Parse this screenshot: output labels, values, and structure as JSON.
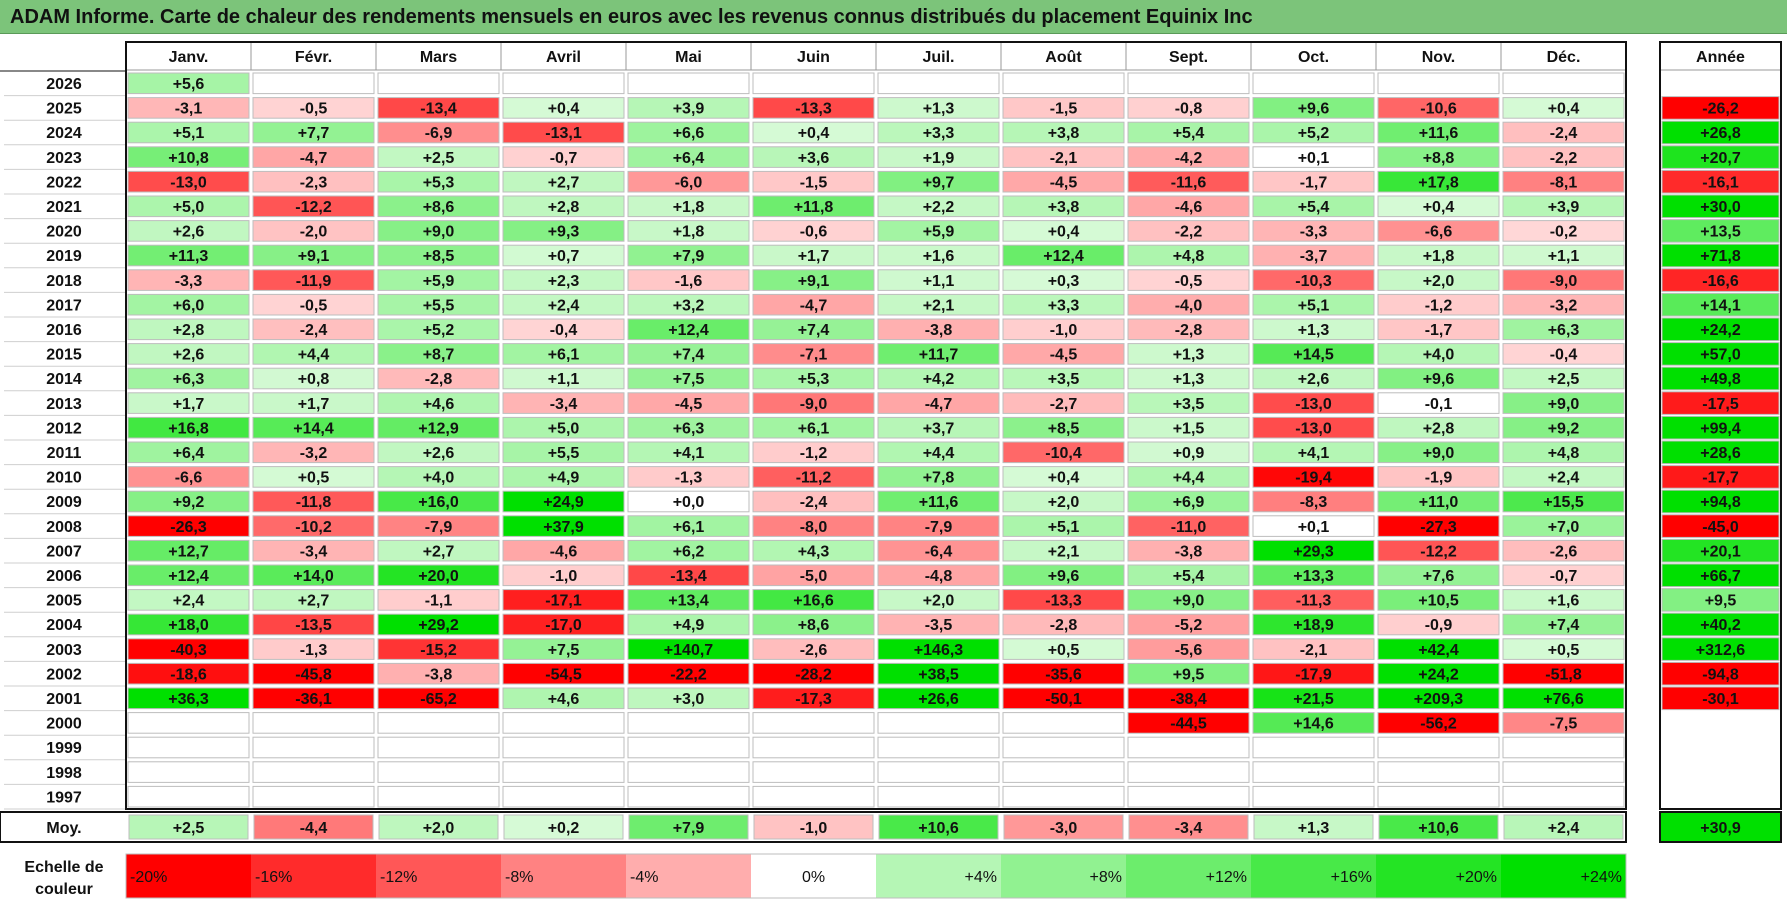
{
  "title": "ADAM Informe. Carte de chaleur des rendements mensuels en euros avec les revenus connus distribués du placement Equinix Inc",
  "chart_data": {
    "type": "heatmap",
    "months": [
      "Janv.",
      "Févr.",
      "Mars",
      "Avril",
      "Mai",
      "Juin",
      "Juil.",
      "Août",
      "Sept.",
      "Oct.",
      "Nov.",
      "Déc."
    ],
    "year_header": "Année",
    "rows": [
      {
        "year": "2026",
        "values": [
          "+5,6",
          "",
          "",
          "",
          "",
          "",
          "",
          "",
          "",
          "",
          "",
          ""
        ],
        "annual": ""
      },
      {
        "year": "2025",
        "values": [
          "-3,1",
          "-0,5",
          "-13,4",
          "+0,4",
          "+3,9",
          "-13,3",
          "+1,3",
          "-1,5",
          "-0,8",
          "+9,6",
          "-10,6",
          "+0,4"
        ],
        "annual": "-26,2"
      },
      {
        "year": "2024",
        "values": [
          "+5,1",
          "+7,7",
          "-6,9",
          "-13,1",
          "+6,6",
          "+0,4",
          "+3,3",
          "+3,8",
          "+5,4",
          "+5,2",
          "+11,6",
          "-2,4"
        ],
        "annual": "+26,8"
      },
      {
        "year": "2023",
        "values": [
          "+10,8",
          "-4,7",
          "+2,5",
          "-0,7",
          "+6,4",
          "+3,6",
          "+1,9",
          "-2,1",
          "-4,2",
          "+0,1",
          "+8,8",
          "-2,2"
        ],
        "annual": "+20,7"
      },
      {
        "year": "2022",
        "values": [
          "-13,0",
          "-2,3",
          "+5,3",
          "+2,7",
          "-6,0",
          "-1,5",
          "+9,7",
          "-4,5",
          "-11,6",
          "-1,7",
          "+17,8",
          "-8,1"
        ],
        "annual": "-16,1"
      },
      {
        "year": "2021",
        "values": [
          "+5,0",
          "-12,2",
          "+8,6",
          "+2,8",
          "+1,8",
          "+11,8",
          "+2,2",
          "+3,8",
          "-4,6",
          "+5,4",
          "+0,4",
          "+3,9"
        ],
        "annual": "+30,0"
      },
      {
        "year": "2020",
        "values": [
          "+2,6",
          "-2,0",
          "+9,0",
          "+9,3",
          "+1,8",
          "-0,6",
          "+5,9",
          "+0,4",
          "-2,2",
          "-3,3",
          "-6,6",
          "-0,2"
        ],
        "annual": "+13,5"
      },
      {
        "year": "2019",
        "values": [
          "+11,3",
          "+9,1",
          "+8,5",
          "+0,7",
          "+7,9",
          "+1,7",
          "+1,6",
          "+12,4",
          "+4,8",
          "-3,7",
          "+1,8",
          "+1,1"
        ],
        "annual": "+71,8"
      },
      {
        "year": "2018",
        "values": [
          "-3,3",
          "-11,9",
          "+5,9",
          "+2,3",
          "-1,6",
          "+9,1",
          "+1,1",
          "+0,3",
          "-0,5",
          "-10,3",
          "+2,0",
          "-9,0"
        ],
        "annual": "-16,6"
      },
      {
        "year": "2017",
        "values": [
          "+6,0",
          "-0,5",
          "+5,5",
          "+2,4",
          "+3,2",
          "-4,7",
          "+2,1",
          "+3,3",
          "-4,0",
          "+5,1",
          "-1,2",
          "-3,2"
        ],
        "annual": "+14,1"
      },
      {
        "year": "2016",
        "values": [
          "+2,8",
          "-2,4",
          "+5,2",
          "-0,4",
          "+12,4",
          "+7,4",
          "-3,8",
          "-1,0",
          "-2,8",
          "+1,3",
          "-1,7",
          "+6,3"
        ],
        "annual": "+24,2"
      },
      {
        "year": "2015",
        "values": [
          "+2,6",
          "+4,4",
          "+8,7",
          "+6,1",
          "+7,4",
          "-7,1",
          "+11,7",
          "-4,5",
          "+1,3",
          "+14,5",
          "+4,0",
          "-0,4"
        ],
        "annual": "+57,0"
      },
      {
        "year": "2014",
        "values": [
          "+6,3",
          "+0,8",
          "-2,8",
          "+1,1",
          "+7,5",
          "+5,3",
          "+4,2",
          "+3,5",
          "+1,3",
          "+2,6",
          "+9,6",
          "+2,5"
        ],
        "annual": "+49,8"
      },
      {
        "year": "2013",
        "values": [
          "+1,7",
          "+1,7",
          "+4,6",
          "-3,4",
          "-4,5",
          "-9,0",
          "-4,7",
          "-2,7",
          "+3,5",
          "-13,0",
          "-0,1",
          "+9,0"
        ],
        "annual": "-17,5"
      },
      {
        "year": "2012",
        "values": [
          "+16,8",
          "+14,4",
          "+12,9",
          "+5,0",
          "+6,3",
          "+6,1",
          "+3,7",
          "+8,5",
          "+1,5",
          "-13,0",
          "+2,8",
          "+9,2"
        ],
        "annual": "+99,4"
      },
      {
        "year": "2011",
        "values": [
          "+6,4",
          "-3,2",
          "+2,6",
          "+5,5",
          "+4,1",
          "-1,2",
          "+4,4",
          "-10,4",
          "+0,9",
          "+4,1",
          "+9,0",
          "+4,8"
        ],
        "annual": "+28,6"
      },
      {
        "year": "2010",
        "values": [
          "-6,6",
          "+0,5",
          "+4,0",
          "+4,9",
          "-1,3",
          "-11,2",
          "+7,8",
          "+0,4",
          "+4,4",
          "-19,4",
          "-1,9",
          "+2,4"
        ],
        "annual": "-17,7"
      },
      {
        "year": "2009",
        "values": [
          "+9,2",
          "-11,8",
          "+16,0",
          "+24,9",
          "+0,0",
          "-2,4",
          "+11,6",
          "+2,0",
          "+6,9",
          "-8,3",
          "+11,0",
          "+15,5"
        ],
        "annual": "+94,8"
      },
      {
        "year": "2008",
        "values": [
          "-26,3",
          "-10,2",
          "-7,9",
          "+37,9",
          "+6,1",
          "-8,0",
          "-7,9",
          "+5,1",
          "-11,0",
          "+0,1",
          "-27,3",
          "+7,0"
        ],
        "annual": "-45,0"
      },
      {
        "year": "2007",
        "values": [
          "+12,7",
          "-3,4",
          "+2,7",
          "-4,6",
          "+6,2",
          "+4,3",
          "-6,4",
          "+2,1",
          "-3,8",
          "+29,3",
          "-12,2",
          "-2,6"
        ],
        "annual": "+20,1"
      },
      {
        "year": "2006",
        "values": [
          "+12,4",
          "+14,0",
          "+20,0",
          "-1,0",
          "-13,4",
          "-5,0",
          "-4,8",
          "+9,6",
          "+5,4",
          "+13,3",
          "+7,6",
          "-0,7"
        ],
        "annual": "+66,7"
      },
      {
        "year": "2005",
        "values": [
          "+2,4",
          "+2,7",
          "-1,1",
          "-17,1",
          "+13,4",
          "+16,6",
          "+2,0",
          "-13,3",
          "+9,0",
          "-11,3",
          "+10,5",
          "+1,6"
        ],
        "annual": "+9,5"
      },
      {
        "year": "2004",
        "values": [
          "+18,0",
          "-13,5",
          "+29,2",
          "-17,0",
          "+4,9",
          "+8,6",
          "-3,5",
          "-2,8",
          "-5,2",
          "+18,9",
          "-0,9",
          "+7,4"
        ],
        "annual": "+40,2"
      },
      {
        "year": "2003",
        "values": [
          "-40,3",
          "-1,3",
          "-15,2",
          "+7,5",
          "+140,7",
          "-2,6",
          "+146,3",
          "+0,5",
          "-5,6",
          "-2,1",
          "+42,4",
          "+0,5"
        ],
        "annual": "+312,6"
      },
      {
        "year": "2002",
        "values": [
          "-18,6",
          "-45,8",
          "-3,8",
          "-54,5",
          "-22,2",
          "-28,2",
          "+38,5",
          "-35,6",
          "+9,5",
          "-17,9",
          "+24,2",
          "-51,8"
        ],
        "annual": "-94,8"
      },
      {
        "year": "2001",
        "values": [
          "+36,3",
          "-36,1",
          "-65,2",
          "+4,6",
          "+3,0",
          "-17,3",
          "+26,6",
          "-50,1",
          "-38,4",
          "+21,5",
          "+209,3",
          "+76,6"
        ],
        "annual": "-30,1"
      },
      {
        "year": "2000",
        "values": [
          "",
          "",
          "",
          "",
          "",
          "",
          "",
          "",
          "-44,5",
          "+14,6",
          "-56,2",
          "-7,5"
        ],
        "annual": ""
      },
      {
        "year": "1999",
        "values": [
          "",
          "",
          "",
          "",
          "",
          "",
          "",
          "",
          "",
          "",
          "",
          ""
        ],
        "annual": ""
      },
      {
        "year": "1998",
        "values": [
          "",
          "",
          "",
          "",
          "",
          "",
          "",
          "",
          "",
          "",
          "",
          ""
        ],
        "annual": ""
      },
      {
        "year": "1997",
        "values": [
          "",
          "",
          "",
          "",
          "",
          "",
          "",
          "",
          "",
          "",
          "",
          ""
        ],
        "annual": ""
      }
    ],
    "average": {
      "label": "Moy.",
      "values": [
        "+2,5",
        "-4,4",
        "+2,0",
        "+0,2",
        "+7,9",
        "-1,0",
        "+10,6",
        "-3,0",
        "-3,4",
        "+1,3",
        "+10,6",
        "+2,4"
      ],
      "annual": "+30,9"
    },
    "scale": {
      "label_line1": "Echelle de",
      "label_line2": "couleur",
      "steps": [
        {
          "label": "-20%",
          "value": -20
        },
        {
          "label": "-16%",
          "value": -16
        },
        {
          "label": "-12%",
          "value": -12
        },
        {
          "label": "-8%",
          "value": -8
        },
        {
          "label": "-4%",
          "value": -4
        },
        {
          "label": "0%",
          "value": 0
        },
        {
          "label": "+4%",
          "value": 4
        },
        {
          "label": "+8%",
          "value": 8
        },
        {
          "label": "+12%",
          "value": 12
        },
        {
          "label": "+16%",
          "value": 16
        },
        {
          "label": "+20%",
          "value": 20
        },
        {
          "label": "+24%",
          "value": 24
        }
      ]
    }
  },
  "colors": {
    "title_bg": "#7cc47a",
    "neg_strong": "#ff0000",
    "pos_strong": "#00e000",
    "zero": "#ffffff"
  }
}
